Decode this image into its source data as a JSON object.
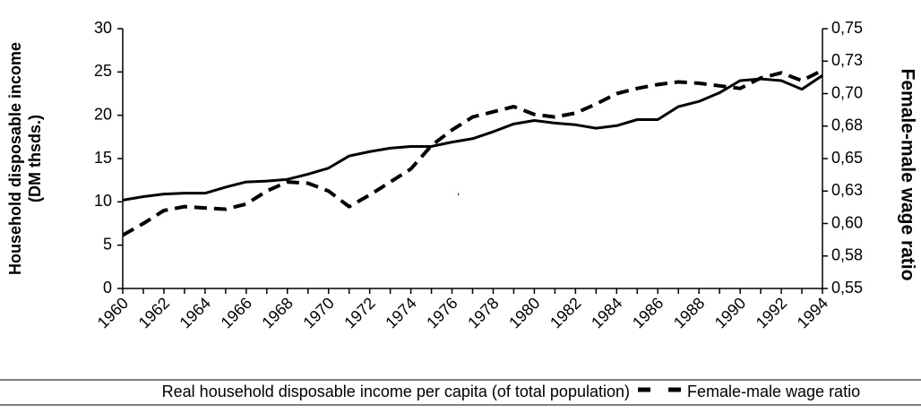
{
  "chart_data": {
    "type": "line",
    "ylabel": [
      "Household disposable income",
      "(DM thsds.)"
    ],
    "y2label": "Female-male wage ratio",
    "annotation": ",",
    "x": [
      1960,
      1961,
      1962,
      1963,
      1964,
      1965,
      1966,
      1967,
      1968,
      1969,
      1970,
      1971,
      1972,
      1973,
      1974,
      1975,
      1976,
      1977,
      1978,
      1979,
      1980,
      1981,
      1982,
      1983,
      1984,
      1985,
      1986,
      1987,
      1988,
      1989,
      1990,
      1991,
      1992,
      1993,
      1994
    ],
    "xlim": [
      1960,
      1994
    ],
    "xticks": [
      1960,
      1962,
      1964,
      1966,
      1968,
      1970,
      1972,
      1974,
      1976,
      1978,
      1980,
      1982,
      1984,
      1986,
      1988,
      1990,
      1992,
      1994
    ],
    "ylim": [
      0,
      30
    ],
    "yticks": [
      0,
      5,
      10,
      15,
      20,
      25,
      30
    ],
    "y2lim": [
      0.55,
      0.75
    ],
    "y2ticks": [
      {
        "value": 0.55,
        "label": "0,55"
      },
      {
        "value": 0.575,
        "label": "0,58"
      },
      {
        "value": 0.6,
        "label": "0,60"
      },
      {
        "value": 0.625,
        "label": "0,63"
      },
      {
        "value": 0.65,
        "label": "0,65"
      },
      {
        "value": 0.675,
        "label": "0,68"
      },
      {
        "value": 0.7,
        "label": "0,70"
      },
      {
        "value": 0.725,
        "label": "0,73"
      },
      {
        "value": 0.75,
        "label": "0,75"
      }
    ],
    "series": [
      {
        "name": "Real household disposable income per capita (of total population)",
        "color": "#000000",
        "style": "solid",
        "values": [
          10.2,
          10.6,
          10.9,
          11.0,
          11.0,
          11.7,
          12.3,
          12.4,
          12.6,
          13.2,
          13.9,
          15.3,
          15.8,
          16.2,
          16.4,
          16.4,
          16.9,
          17.3,
          18.1,
          19.0,
          19.4,
          19.1,
          18.9,
          18.5,
          18.8,
          19.5,
          19.5,
          21.0,
          21.6,
          22.6,
          24.0,
          24.2,
          24.0,
          23.0,
          24.6
        ]
      },
      {
        "name": "Female-male wage ratio",
        "color": "#000000",
        "style": "dashed",
        "axis": "y2",
        "values": [
          0.591,
          0.6,
          0.61,
          0.613,
          0.612,
          0.611,
          0.615,
          0.625,
          0.632,
          0.631,
          0.625,
          0.613,
          0.622,
          0.632,
          0.642,
          0.66,
          0.672,
          0.682,
          0.686,
          0.69,
          0.684,
          0.682,
          0.685,
          0.692,
          0.7,
          0.704,
          0.707,
          0.709,
          0.708,
          0.706,
          0.704,
          0.712,
          0.716,
          0.71,
          0.718
        ]
      }
    ]
  }
}
